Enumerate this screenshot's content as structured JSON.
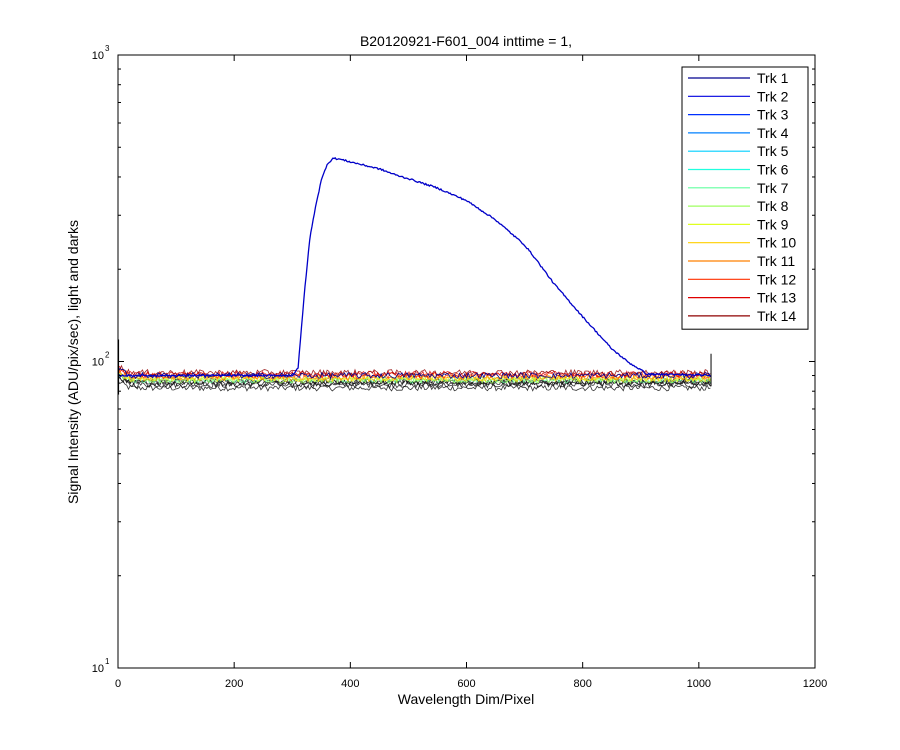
{
  "chart_data": {
    "type": "line",
    "title": "B20120921-F601_004 inttime = 1,",
    "xlabel": "Wavelength Dim/Pixel",
    "ylabel": "Signal Intensity (ADU/pix/sec), light and darks",
    "xlim": [
      0,
      1200
    ],
    "ylim": [
      10,
      1000
    ],
    "yscale": "log",
    "grid": false,
    "legend_position": "top-right",
    "x_ticks": [
      "0",
      "200",
      "400",
      "600",
      "800",
      "1000",
      "1200"
    ],
    "y_ticks": [
      {
        "value": 10,
        "base": "10",
        "exp": "1"
      },
      {
        "value": 100,
        "base": "10",
        "exp": "2"
      },
      {
        "value": 1000,
        "base": "10",
        "exp": "3"
      }
    ],
    "signal_peak_curve": {
      "series": "Trk 1",
      "x": [
        0,
        300,
        310,
        320,
        330,
        340,
        350,
        360,
        370,
        380,
        400,
        450,
        480,
        500,
        550,
        600,
        650,
        700,
        720,
        750,
        800,
        850,
        880,
        900,
        910,
        1022
      ],
      "y": [
        90,
        90,
        95,
        160,
        250,
        320,
        390,
        440,
        460,
        458,
        448,
        425,
        405,
        395,
        368,
        335,
        290,
        240,
        215,
        180,
        140,
        110,
        99,
        94,
        91,
        90
      ]
    },
    "series": [
      {
        "name": "Trk 1",
        "color": "#00008f",
        "level": 90
      },
      {
        "name": "Trk 2",
        "color": "#0000df",
        "level": 82
      },
      {
        "name": "Trk 3",
        "color": "#0030ff",
        "level": 84
      },
      {
        "name": "Trk 4",
        "color": "#0080ff",
        "level": 85
      },
      {
        "name": "Trk 5",
        "color": "#00cfff",
        "level": 86
      },
      {
        "name": "Trk 6",
        "color": "#20ffdf",
        "level": 86
      },
      {
        "name": "Trk 7",
        "color": "#60ff9f",
        "level": 87
      },
      {
        "name": "Trk 8",
        "color": "#9fff60",
        "level": 87
      },
      {
        "name": "Trk 9",
        "color": "#dfff20",
        "level": 88
      },
      {
        "name": "Trk 10",
        "color": "#ffcf00",
        "level": 88
      },
      {
        "name": "Trk 11",
        "color": "#ff8000",
        "level": 89
      },
      {
        "name": "Trk 12",
        "color": "#ff3000",
        "level": 90
      },
      {
        "name": "Trk 13",
        "color": "#df0000",
        "level": 91
      },
      {
        "name": "Trk 14",
        "color": "#8f0000",
        "level": 92
      }
    ],
    "x_max_data": 1022
  }
}
